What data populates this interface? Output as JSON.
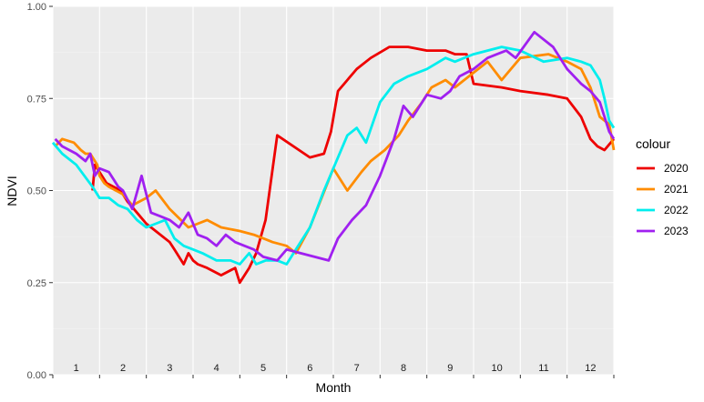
{
  "chart_data": {
    "type": "line",
    "xlabel": "Month",
    "ylabel": "NDVI",
    "ylim": [
      0.0,
      1.0
    ],
    "xlim": [
      0,
      12
    ],
    "y_ticks": [
      0.0,
      0.25,
      0.5,
      0.75,
      1.0
    ],
    "y_tick_labels": [
      "0.00",
      "0.25",
      "0.50",
      "0.75",
      "1.00"
    ],
    "month_labels": [
      "1",
      "2",
      "3",
      "4",
      "5",
      "6",
      "7",
      "8",
      "9",
      "10",
      "11",
      "12"
    ],
    "grid": true,
    "legend": {
      "title": "colour",
      "position": "right"
    },
    "series": [
      {
        "name": "2020",
        "color": "#ee0000",
        "x": [
          0.85,
          0.9,
          1.15,
          1.3,
          1.45,
          1.6,
          1.8,
          2.0,
          2.2,
          2.5,
          2.6,
          2.8,
          2.9,
          3.0,
          3.1,
          3.3,
          3.6,
          3.9,
          4.0,
          4.2,
          4.35,
          4.55,
          4.8,
          5.5,
          5.8,
          5.95,
          6.1,
          6.3,
          6.5,
          6.8,
          7.2,
          7.6,
          8.0,
          8.4,
          8.6,
          8.85,
          9.0,
          9.6,
          10.0,
          10.6,
          11.0,
          11.3,
          11.5,
          11.65,
          11.8,
          12.0
        ],
        "y": [
          0.5,
          0.57,
          0.52,
          0.51,
          0.5,
          0.47,
          0.44,
          0.41,
          0.39,
          0.36,
          0.34,
          0.3,
          0.33,
          0.31,
          0.3,
          0.29,
          0.27,
          0.29,
          0.25,
          0.29,
          0.33,
          0.42,
          0.65,
          0.59,
          0.6,
          0.66,
          0.77,
          0.8,
          0.83,
          0.86,
          0.89,
          0.89,
          0.88,
          0.88,
          0.87,
          0.87,
          0.79,
          0.78,
          0.77,
          0.76,
          0.75,
          0.7,
          0.64,
          0.62,
          0.61,
          0.64
        ]
      },
      {
        "name": "2021",
        "color": "#ff8c00",
        "x": [
          0.05,
          0.2,
          0.45,
          0.6,
          0.7,
          0.8,
          0.95,
          1.0,
          1.1,
          1.2,
          1.5,
          1.7,
          2.0,
          2.2,
          2.5,
          2.9,
          3.3,
          3.6,
          4.0,
          4.3,
          4.5,
          4.7,
          5.0,
          5.2,
          5.5,
          6.0,
          6.3,
          6.6,
          6.8,
          7.1,
          7.4,
          7.6,
          7.9,
          8.1,
          8.4,
          8.6,
          9.0,
          9.3,
          9.6,
          10.0,
          10.6,
          11.0,
          11.3,
          11.5,
          11.7,
          11.9,
          12.0
        ],
        "y": [
          0.62,
          0.64,
          0.63,
          0.61,
          0.6,
          0.6,
          0.57,
          0.54,
          0.52,
          0.51,
          0.49,
          0.46,
          0.48,
          0.5,
          0.45,
          0.4,
          0.42,
          0.4,
          0.39,
          0.38,
          0.37,
          0.36,
          0.35,
          0.33,
          0.4,
          0.56,
          0.5,
          0.55,
          0.58,
          0.61,
          0.65,
          0.69,
          0.74,
          0.78,
          0.8,
          0.78,
          0.82,
          0.85,
          0.8,
          0.86,
          0.87,
          0.85,
          0.83,
          0.78,
          0.7,
          0.68,
          0.61
        ]
      },
      {
        "name": "2022",
        "color": "#00eeee",
        "x": [
          0.0,
          0.2,
          0.5,
          0.85,
          1.0,
          1.2,
          1.4,
          1.6,
          1.8,
          2.0,
          2.2,
          2.4,
          2.6,
          2.8,
          3.0,
          3.2,
          3.5,
          3.8,
          4.0,
          4.2,
          4.35,
          4.55,
          4.8,
          5.0,
          5.2,
          5.5,
          5.8,
          6.0,
          6.3,
          6.5,
          6.7,
          7.0,
          7.3,
          7.6,
          8.0,
          8.4,
          8.6,
          9.0,
          9.3,
          9.6,
          10.0,
          10.5,
          11.0,
          11.3,
          11.5,
          11.7,
          11.8,
          11.9,
          12.0
        ],
        "y": [
          0.63,
          0.6,
          0.57,
          0.51,
          0.48,
          0.48,
          0.46,
          0.45,
          0.42,
          0.4,
          0.41,
          0.42,
          0.37,
          0.35,
          0.34,
          0.33,
          0.31,
          0.31,
          0.3,
          0.33,
          0.3,
          0.31,
          0.31,
          0.3,
          0.34,
          0.4,
          0.5,
          0.56,
          0.65,
          0.67,
          0.63,
          0.74,
          0.79,
          0.81,
          0.83,
          0.86,
          0.85,
          0.87,
          0.88,
          0.89,
          0.88,
          0.85,
          0.86,
          0.85,
          0.84,
          0.8,
          0.75,
          0.69,
          0.67
        ]
      },
      {
        "name": "2023",
        "color": "#a020f0",
        "x": [
          0.05,
          0.2,
          0.5,
          0.7,
          0.8,
          0.9,
          1.0,
          1.2,
          1.4,
          1.5,
          1.7,
          1.9,
          2.1,
          2.3,
          2.5,
          2.7,
          2.9,
          3.1,
          3.3,
          3.5,
          3.7,
          3.9,
          4.1,
          4.3,
          4.5,
          4.8,
          5.0,
          5.3,
          5.6,
          5.9,
          6.1,
          6.4,
          6.7,
          7.0,
          7.3,
          7.5,
          7.7,
          8.0,
          8.3,
          8.5,
          8.7,
          9.0,
          9.3,
          9.5,
          9.7,
          9.9,
          10.3,
          10.7,
          11.0,
          11.3,
          11.5,
          11.7,
          11.9,
          12.0
        ],
        "y": [
          0.64,
          0.62,
          0.6,
          0.58,
          0.6,
          0.54,
          0.56,
          0.55,
          0.51,
          0.5,
          0.45,
          0.54,
          0.44,
          0.43,
          0.42,
          0.4,
          0.44,
          0.38,
          0.37,
          0.35,
          0.38,
          0.36,
          0.35,
          0.34,
          0.32,
          0.31,
          0.34,
          0.33,
          0.32,
          0.31,
          0.37,
          0.42,
          0.46,
          0.54,
          0.64,
          0.73,
          0.7,
          0.76,
          0.75,
          0.77,
          0.81,
          0.83,
          0.86,
          0.87,
          0.88,
          0.86,
          0.93,
          0.89,
          0.83,
          0.79,
          0.77,
          0.74,
          0.66,
          0.64
        ]
      }
    ]
  }
}
